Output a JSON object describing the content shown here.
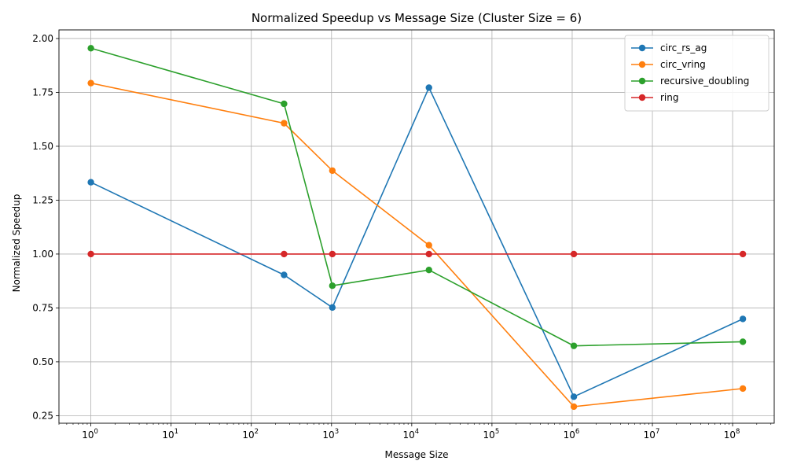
{
  "chart_data": {
    "type": "line",
    "title": "Normalized Speedup vs Message Size (Cluster Size = 6)",
    "xlabel": "Message Size",
    "ylabel": "Normalized Speedup",
    "xscale": "log",
    "xlim": [
      0.4,
      330000000
    ],
    "ylim": [
      0.215,
      2.04
    ],
    "x_ticks": [
      {
        "value": 1,
        "base": "10",
        "exp": "0"
      },
      {
        "value": 10,
        "base": "10",
        "exp": "1"
      },
      {
        "value": 100,
        "base": "10",
        "exp": "2"
      },
      {
        "value": 1000,
        "base": "10",
        "exp": "3"
      },
      {
        "value": 10000,
        "base": "10",
        "exp": "4"
      },
      {
        "value": 100000,
        "base": "10",
        "exp": "5"
      },
      {
        "value": 1000000,
        "base": "10",
        "exp": "6"
      },
      {
        "value": 10000000,
        "base": "10",
        "exp": "7"
      },
      {
        "value": 100000000,
        "base": "10",
        "exp": "8"
      }
    ],
    "y_ticks": [
      {
        "value": 0.25,
        "label": "0.25"
      },
      {
        "value": 0.5,
        "label": "0.50"
      },
      {
        "value": 0.75,
        "label": "0.75"
      },
      {
        "value": 1.0,
        "label": "1.00"
      },
      {
        "value": 1.25,
        "label": "1.25"
      },
      {
        "value": 1.5,
        "label": "1.50"
      },
      {
        "value": 1.75,
        "label": "1.75"
      },
      {
        "value": 2.0,
        "label": "2.00"
      }
    ],
    "grid": true,
    "legend_position": "top-right",
    "x": [
      1,
      256,
      1024,
      16384,
      1048576,
      134217728
    ],
    "series": [
      {
        "name": "circ_rs_ag",
        "color": "#1f77b4",
        "values": [
          1.333,
          0.903,
          0.752,
          1.772,
          0.338,
          0.699
        ]
      },
      {
        "name": "circ_vring",
        "color": "#ff7f0e",
        "values": [
          1.793,
          1.607,
          1.387,
          1.041,
          0.292,
          0.376
        ]
      },
      {
        "name": "recursive_doubling",
        "color": "#2ca02c",
        "values": [
          1.955,
          1.697,
          0.853,
          0.926,
          0.574,
          0.593
        ]
      },
      {
        "name": "ring",
        "color": "#d62728",
        "values": [
          1.0,
          1.0,
          1.0,
          1.0,
          1.0,
          1.0
        ]
      }
    ]
  }
}
